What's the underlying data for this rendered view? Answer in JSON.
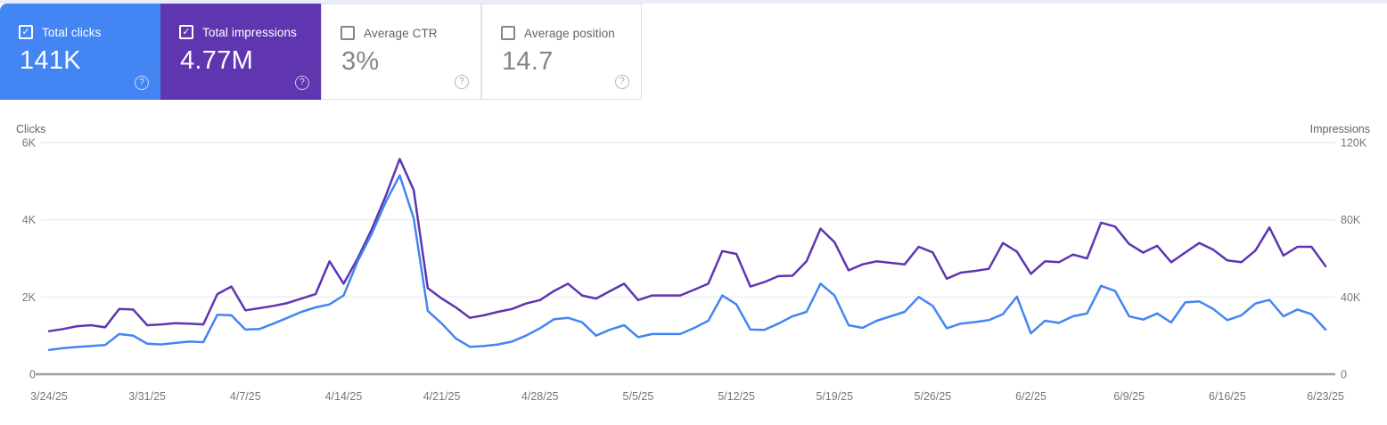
{
  "cards": [
    {
      "id": "total-clicks",
      "label": "Total clicks",
      "value": "141K",
      "checked": true,
      "bg": "#4385f3"
    },
    {
      "id": "total-impressions",
      "label": "Total impressions",
      "value": "4.77M",
      "checked": true,
      "bg": "#5f36b0"
    },
    {
      "id": "average-ctr",
      "label": "Average CTR",
      "value": "3%",
      "checked": false,
      "bg": "#ffffff"
    },
    {
      "id": "average-position",
      "label": "Average position",
      "value": "14.7",
      "checked": false,
      "bg": "#ffffff"
    }
  ],
  "chart": {
    "left_axis_title": "Clicks",
    "right_axis_title": "Impressions",
    "left_ticks": [
      "6K",
      "4K",
      "2K",
      "0"
    ],
    "right_ticks": [
      "120K",
      "80K",
      "40K",
      "0"
    ],
    "x_tick_labels": [
      "3/24/25",
      "3/31/25",
      "4/7/25",
      "4/14/25",
      "4/21/25",
      "4/28/25",
      "5/5/25",
      "5/12/25",
      "5/19/25",
      "5/26/25",
      "6/2/25",
      "6/9/25",
      "6/16/25",
      "6/23/25"
    ],
    "grid_color": "#e7e9eb",
    "axis_line_color": "#9aa0a6",
    "tick_text_color": "#74787d",
    "axis_title_color": "#5f6368"
  },
  "chart_data": {
    "type": "line",
    "x": [
      "3/24/25",
      "3/25/25",
      "3/26/25",
      "3/27/25",
      "3/28/25",
      "3/29/25",
      "3/30/25",
      "3/31/25",
      "4/1/25",
      "4/2/25",
      "4/3/25",
      "4/4/25",
      "4/5/25",
      "4/6/25",
      "4/7/25",
      "4/8/25",
      "4/9/25",
      "4/10/25",
      "4/11/25",
      "4/12/25",
      "4/13/25",
      "4/14/25",
      "4/15/25",
      "4/16/25",
      "4/17/25",
      "4/18/25",
      "4/19/25",
      "4/20/25",
      "4/21/25",
      "4/22/25",
      "4/23/25",
      "4/24/25",
      "4/25/25",
      "4/26/25",
      "4/27/25",
      "4/28/25",
      "4/29/25",
      "4/30/25",
      "5/1/25",
      "5/2/25",
      "5/3/25",
      "5/4/25",
      "5/5/25",
      "5/6/25",
      "5/7/25",
      "5/8/25",
      "5/9/25",
      "5/10/25",
      "5/11/25",
      "5/12/25",
      "5/13/25",
      "5/14/25",
      "5/15/25",
      "5/16/25",
      "5/17/25",
      "5/18/25",
      "5/19/25",
      "5/20/25",
      "5/21/25",
      "5/22/25",
      "5/23/25",
      "5/24/25",
      "5/25/25",
      "5/26/25",
      "5/27/25",
      "5/28/25",
      "5/29/25",
      "5/30/25",
      "5/31/25",
      "6/1/25",
      "6/2/25",
      "6/3/25",
      "6/4/25",
      "6/5/25",
      "6/6/25",
      "6/7/25",
      "6/8/25",
      "6/9/25",
      "6/10/25",
      "6/11/25",
      "6/12/25",
      "6/13/25",
      "6/14/25",
      "6/15/25",
      "6/16/25",
      "6/17/25",
      "6/18/25",
      "6/19/25",
      "6/20/25",
      "6/21/25",
      "6/22/25",
      "6/23/25"
    ],
    "series": [
      {
        "name": "Total impressions",
        "axis": "right",
        "color": "#5e35b1",
        "values": [
          22300,
          23400,
          24900,
          25400,
          24300,
          33800,
          33500,
          25400,
          25800,
          26400,
          26200,
          25800,
          41500,
          45400,
          33100,
          34200,
          35400,
          36900,
          39200,
          41500,
          58500,
          46900,
          60000,
          75000,
          92300,
          111500,
          95400,
          44600,
          39200,
          34600,
          29200,
          30500,
          32300,
          33800,
          36600,
          38400,
          43100,
          46900,
          40800,
          39200,
          43100,
          46900,
          38400,
          40800,
          40800,
          40800,
          43800,
          46900,
          63800,
          62300,
          45400,
          47700,
          50800,
          51000,
          58500,
          75400,
          68400,
          53800,
          56900,
          58500,
          57700,
          56900,
          66000,
          63100,
          49500,
          52600,
          53500,
          54600,
          68000,
          63500,
          52000,
          58500,
          58000,
          62000,
          60000,
          78500,
          76500,
          67500,
          63000,
          66500,
          58000,
          63000,
          68000,
          64500,
          59000,
          58000,
          64000,
          76000,
          61500,
          66000,
          66000,
          56000
        ]
      },
      {
        "name": "Total clicks",
        "axis": "left",
        "color": "#4385f3",
        "values": [
          630,
          675,
          705,
          730,
          755,
          1040,
          1000,
          790,
          770,
          810,
          845,
          830,
          1540,
          1525,
          1155,
          1170,
          1310,
          1460,
          1615,
          1730,
          1810,
          2040,
          2925,
          3630,
          4460,
          5150,
          4040,
          1640,
          1310,
          925,
          710,
          730,
          770,
          845,
          1000,
          1190,
          1425,
          1460,
          1345,
          1000,
          1155,
          1270,
          960,
          1040,
          1040,
          1040,
          1200,
          1385,
          2040,
          1810,
          1155,
          1150,
          1310,
          1500,
          1615,
          2345,
          2040,
          1270,
          1200,
          1385,
          1500,
          1615,
          2000,
          1770,
          1190,
          1310,
          1350,
          1400,
          1555,
          2010,
          1060,
          1385,
          1330,
          1500,
          1575,
          2290,
          2155,
          1500,
          1415,
          1575,
          1340,
          1860,
          1885,
          1690,
          1400,
          1525,
          1830,
          1925,
          1500,
          1675,
          1555,
          1155
        ]
      }
    ],
    "left_axis": {
      "label": "Clicks",
      "range": [
        0,
        6000
      ],
      "ticks": [
        0,
        2000,
        4000,
        6000
      ]
    },
    "right_axis": {
      "label": "Impressions",
      "range": [
        0,
        120000
      ],
      "ticks": [
        0,
        40000,
        80000,
        120000
      ]
    },
    "x_tick_interval_days": 7,
    "grid": true,
    "legend_position": "none"
  }
}
